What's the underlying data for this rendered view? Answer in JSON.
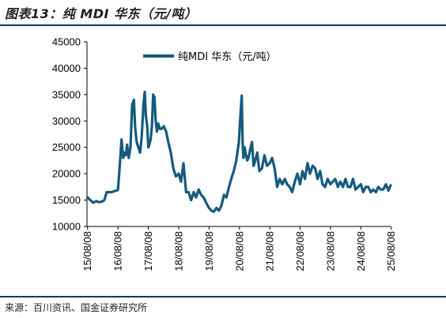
{
  "figure": {
    "title": "图表13：纯 MDI 华东（元/吨）",
    "source": "来源：百川资讯、国金证券研究所"
  },
  "chart_data": {
    "type": "line",
    "title": "",
    "xlabel": "",
    "ylabel": "",
    "ylim": [
      10000,
      45000
    ],
    "yticks": [
      10000,
      15000,
      20000,
      25000,
      30000,
      35000,
      40000,
      45000
    ],
    "xlim": [
      "2015-08-01",
      "2025-08-01"
    ],
    "xticks": [
      "15/08/08",
      "16/08/08",
      "17/08/08",
      "18/08/08",
      "19/08/08",
      "20/08/08",
      "21/08/08",
      "22/08/08",
      "23/08/08",
      "24/08/08",
      "25/08/08"
    ],
    "legend": {
      "position": "top-left",
      "entries": [
        "纯MDI 华东（元/吨）"
      ]
    },
    "grid": false,
    "color": "#145a7e",
    "series": [
      {
        "name": "纯MDI 华东（元/吨）",
        "x": [
          "2015-08-08",
          "2015-09-10",
          "2015-10-15",
          "2015-11-20",
          "2015-12-25",
          "2016-01-25",
          "2016-02-25",
          "2016-03-25",
          "2016-04-25",
          "2016-05-25",
          "2016-06-25",
          "2016-07-25",
          "2016-08-08",
          "2016-09-01",
          "2016-09-20",
          "2016-10-10",
          "2016-10-25",
          "2016-11-10",
          "2016-11-25",
          "2016-12-15",
          "2017-01-05",
          "2017-01-25",
          "2017-02-15",
          "2017-03-01",
          "2017-03-20",
          "2017-04-10",
          "2017-05-01",
          "2017-05-20",
          "2017-06-10",
          "2017-06-25",
          "2017-07-10",
          "2017-07-25",
          "2017-08-08",
          "2017-08-20",
          "2017-09-05",
          "2017-09-20",
          "2017-10-05",
          "2017-10-20",
          "2017-11-05",
          "2017-11-20",
          "2017-12-05",
          "2017-12-25",
          "2018-01-15",
          "2018-02-10",
          "2018-03-10",
          "2018-04-05",
          "2018-05-05",
          "2018-06-05",
          "2018-07-05",
          "2018-08-08",
          "2018-09-05",
          "2018-10-05",
          "2018-11-05",
          "2018-12-05",
          "2019-01-05",
          "2019-02-05",
          "2019-03-05",
          "2019-04-05",
          "2019-05-05",
          "2019-06-05",
          "2019-07-05",
          "2019-08-08",
          "2019-09-05",
          "2019-10-05",
          "2019-11-05",
          "2019-12-05",
          "2020-01-05",
          "2020-02-05",
          "2020-03-05",
          "2020-04-05",
          "2020-05-01",
          "2020-06-01",
          "2020-07-01",
          "2020-08-01",
          "2020-08-20",
          "2020-09-05",
          "2020-09-15",
          "2020-09-25",
          "2020-10-10",
          "2020-10-25",
          "2020-11-10",
          "2020-11-25",
          "2020-12-15",
          "2021-01-05",
          "2021-01-25",
          "2021-02-15",
          "2021-03-10",
          "2021-04-05",
          "2021-05-05",
          "2021-06-05",
          "2021-07-05",
          "2021-08-08",
          "2021-09-05",
          "2021-10-05",
          "2021-11-05",
          "2021-12-05",
          "2022-01-05",
          "2022-02-05",
          "2022-03-05",
          "2022-04-05",
          "2022-05-05",
          "2022-06-05",
          "2022-07-05",
          "2022-08-08",
          "2022-09-05",
          "2022-10-05",
          "2022-11-05",
          "2022-12-05",
          "2023-01-05",
          "2023-02-05",
          "2023-03-05",
          "2023-04-05",
          "2023-05-05",
          "2023-06-05",
          "2023-07-05",
          "2023-08-08",
          "2023-09-05",
          "2023-10-05",
          "2023-11-05",
          "2023-12-05",
          "2024-01-05",
          "2024-02-05",
          "2024-03-05",
          "2024-04-05",
          "2024-05-05",
          "2024-06-05",
          "2024-07-05",
          "2024-08-08",
          "2024-09-05",
          "2024-10-05",
          "2024-11-05",
          "2024-12-05",
          "2025-01-05",
          "2025-02-05",
          "2025-03-05",
          "2025-04-05",
          "2025-05-05",
          "2025-06-05",
          "2025-07-05",
          "2025-08-01"
        ],
        "values": [
          15500,
          15000,
          14500,
          14800,
          14600,
          14700,
          15000,
          16500,
          16500,
          16500,
          16700,
          16800,
          17000,
          22000,
          26500,
          23000,
          24000,
          23500,
          25500,
          23000,
          25000,
          33000,
          34000,
          29000,
          26000,
          25000,
          24000,
          27000,
          33000,
          35500,
          31000,
          29000,
          25000,
          25500,
          26500,
          29000,
          35000,
          34500,
          30000,
          28000,
          29500,
          28500,
          28500,
          29000,
          28000,
          26000,
          24000,
          21000,
          19500,
          20000,
          18500,
          22000,
          16500,
          16500,
          15000,
          16500,
          15500,
          17000,
          16000,
          15500,
          14500,
          13500,
          13000,
          12800,
          13500,
          13000,
          14000,
          16000,
          15500,
          17500,
          19000,
          20500,
          22500,
          26000,
          31000,
          34800,
          26000,
          23000,
          25000,
          23500,
          22500,
          23000,
          24500,
          26000,
          21500,
          22500,
          24000,
          20500,
          21000,
          23500,
          21500,
          22000,
          23000,
          21000,
          17500,
          19000,
          18000,
          19000,
          18000,
          17500,
          16500,
          18500,
          20000,
          18000,
          20500,
          19000,
          22000,
          20000,
          21500,
          21000,
          19000,
          20500,
          18000,
          17500,
          19000,
          18000,
          18500,
          19000,
          17500,
          18500,
          17500,
          19000,
          17500,
          17500,
          19000,
          17000,
          17500,
          18000,
          16500,
          17500,
          17500,
          16500,
          17000,
          16500,
          17500,
          17000,
          17000,
          18000,
          16800,
          17800
        ]
      }
    ]
  }
}
